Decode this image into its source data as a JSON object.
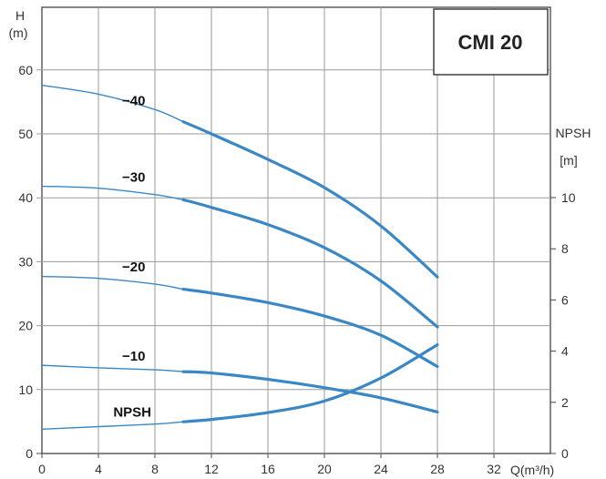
{
  "chart_data": {
    "type": "line",
    "title": "CMI 20",
    "x_axis": {
      "label": "Q(m³/h)",
      "range": [
        0,
        36
      ],
      "ticks": [
        0,
        4,
        8,
        12,
        16,
        20,
        24,
        28,
        32
      ]
    },
    "y_left": {
      "label_line1": "H",
      "label_line2": "(m)",
      "range": [
        0,
        60
      ],
      "ticks": [
        0,
        10,
        20,
        30,
        40,
        50,
        60
      ]
    },
    "y_right": {
      "label_line1": "NPSH",
      "label_line2": "[m]",
      "range": [
        0,
        15
      ],
      "ticks": [
        0,
        2,
        4,
        6,
        8,
        10
      ]
    },
    "grid": true,
    "line_color": "#3a87c6",
    "thick_from_x": 10,
    "series": [
      {
        "name": "−40",
        "axis": "left",
        "x": [
          0,
          4,
          8,
          10,
          12,
          16,
          20,
          24,
          28
        ],
        "y": [
          57.6,
          56.2,
          53.8,
          51.9,
          50.0,
          46.0,
          41.6,
          35.6,
          27.6
        ],
        "label_at": [
          6.5,
          54.5
        ]
      },
      {
        "name": "−30",
        "axis": "left",
        "x": [
          0,
          4,
          8,
          10,
          12,
          16,
          20,
          24,
          28
        ],
        "y": [
          41.8,
          41.5,
          40.5,
          39.7,
          38.5,
          35.8,
          32.2,
          27.0,
          19.8
        ],
        "label_at": [
          6.5,
          42.5
        ]
      },
      {
        "name": "−20",
        "axis": "left",
        "x": [
          0,
          4,
          8,
          10,
          12,
          16,
          20,
          24,
          28
        ],
        "y": [
          27.7,
          27.4,
          26.5,
          25.7,
          25.1,
          23.6,
          21.5,
          18.5,
          13.6
        ],
        "label_at": [
          6.5,
          28.5
        ]
      },
      {
        "name": "−10",
        "axis": "left",
        "x": [
          0,
          4,
          8,
          10,
          12,
          16,
          20,
          24,
          28
        ],
        "y": [
          13.8,
          13.4,
          13.1,
          12.8,
          12.6,
          11.6,
          10.3,
          8.7,
          6.5
        ],
        "label_at": [
          6.5,
          14.5
        ]
      },
      {
        "name": "NPSH",
        "axis": "right",
        "x": [
          0,
          4,
          8,
          10,
          12,
          16,
          20,
          24,
          28
        ],
        "y": [
          0.95,
          1.05,
          1.15,
          1.24,
          1.33,
          1.6,
          2.05,
          2.95,
          4.25
        ],
        "label_at": [
          6.4,
          1.45
        ]
      }
    ]
  }
}
